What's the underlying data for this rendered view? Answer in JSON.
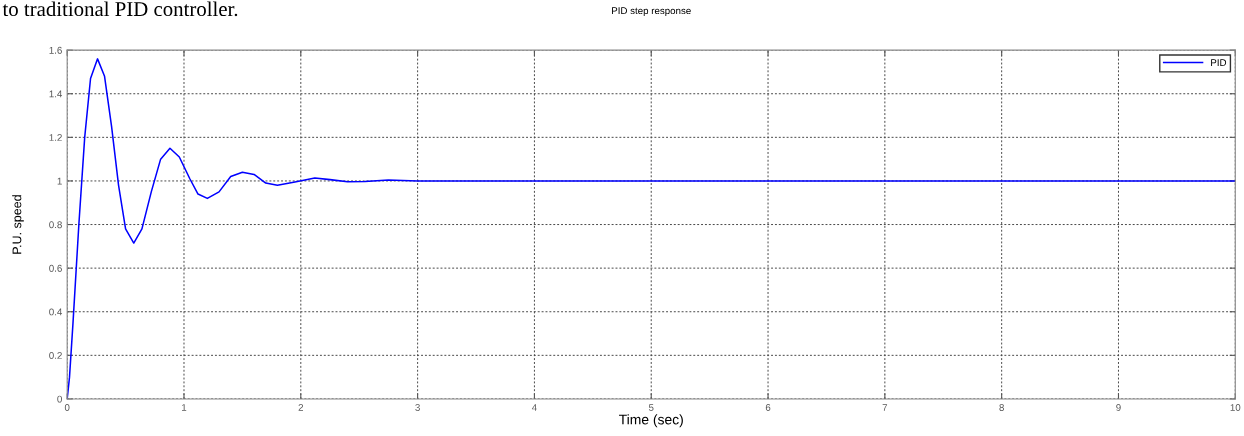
{
  "chart_data": {
    "type": "line",
    "title": "PID step response",
    "xlabel": "Time (sec)",
    "ylabel": "P.U. speed",
    "annotations": [
      "to traditional PID controller."
    ],
    "xlim": [
      0,
      10
    ],
    "xticks": [
      0,
      1,
      2,
      3,
      4,
      5,
      6,
      7,
      8,
      9,
      10
    ],
    "ylim": [
      0,
      1.6
    ],
    "yticks": [
      0,
      0.2,
      0.4,
      0.6,
      0.8,
      1,
      1.2,
      1.4,
      1.6
    ],
    "grid": true,
    "legend": "top right",
    "line_style": "solid",
    "marker": "none",
    "series": [
      {
        "name": "PID",
        "color": "#0000ff",
        "x": [
          0,
          0.02,
          0.05,
          0.1,
          0.15,
          0.2,
          0.26,
          0.32,
          0.38,
          0.44,
          0.5,
          0.57,
          0.64,
          0.72,
          0.8,
          0.88,
          0.96,
          1.05,
          1.12,
          1.2,
          1.3,
          1.4,
          1.5,
          1.6,
          1.7,
          1.8,
          1.95,
          2.12,
          2.25,
          2.4,
          2.55,
          2.75,
          3,
          4,
          5,
          6,
          7,
          8,
          9,
          10
        ],
        "values": [
          0,
          0.1,
          0.35,
          0.8,
          1.2,
          1.47,
          1.56,
          1.48,
          1.25,
          0.98,
          0.78,
          0.715,
          0.78,
          0.95,
          1.1,
          1.15,
          1.11,
          1.01,
          0.94,
          0.92,
          0.95,
          1.02,
          1.04,
          1.03,
          0.99,
          0.98,
          0.995,
          1.013,
          1.006,
          0.996,
          0.997,
          1.004,
          1,
          1,
          1,
          1,
          1,
          1,
          1,
          1
        ]
      }
    ]
  }
}
